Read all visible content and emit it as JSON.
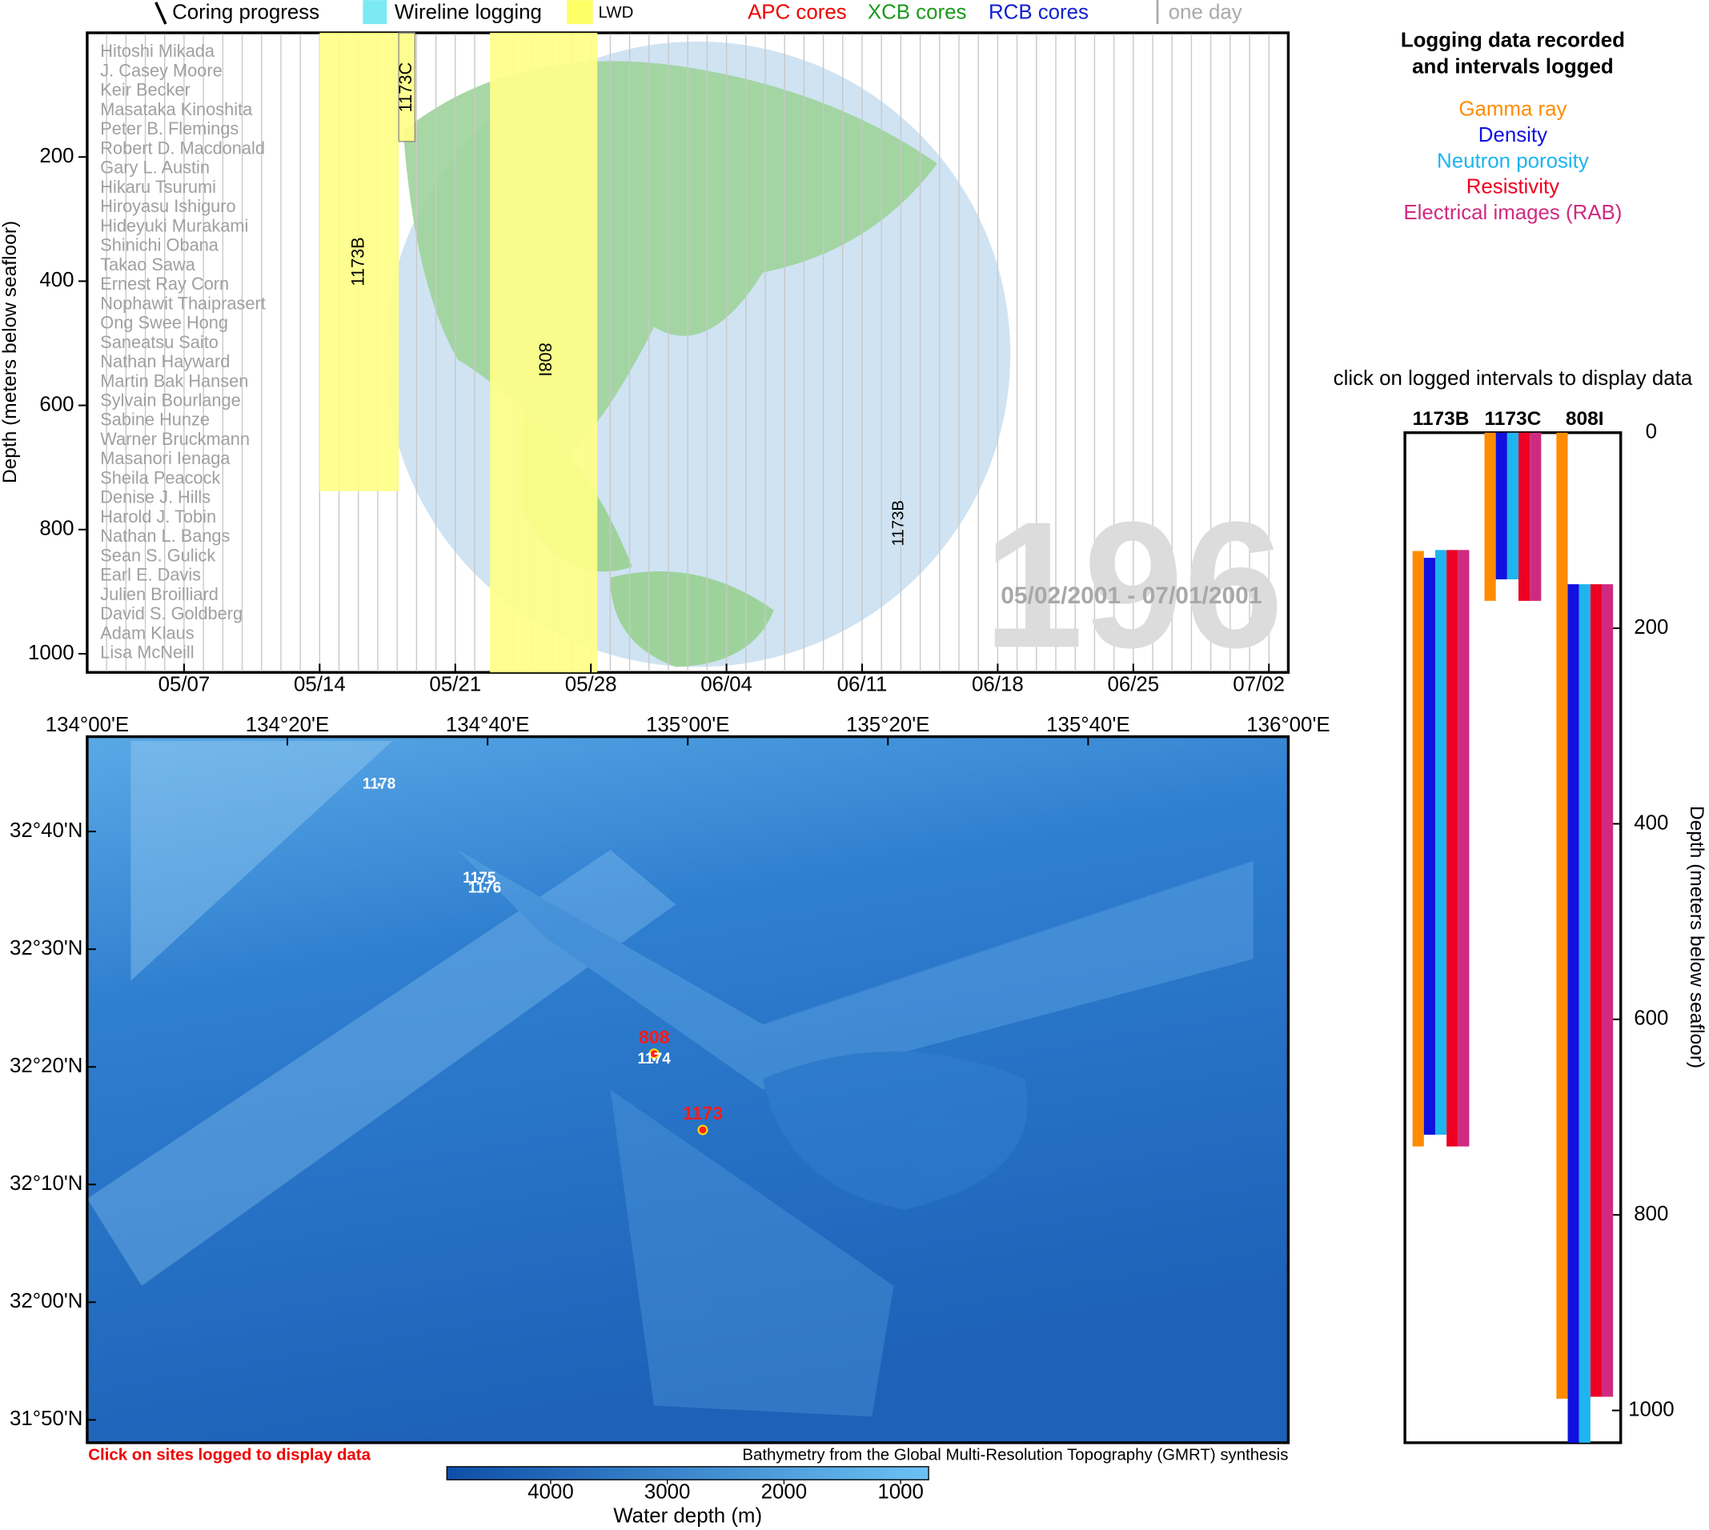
{
  "legend": {
    "coring": "Coring progress",
    "wireline": "Wireline logging",
    "lwd": "LWD",
    "apc": "APC cores",
    "xcb": "XCB cores",
    "rcb": "RCB cores",
    "day": "one day"
  },
  "timeline": {
    "ylabel": "Depth (meters below seafloor)",
    "ylim": [
      0,
      1030
    ],
    "yticks": [
      200,
      400,
      600,
      800,
      1000
    ],
    "xlim": [
      "2001-05-02",
      "2001-07-03"
    ],
    "xticks": [
      {
        "value": "2001-05-07",
        "label": "05/07"
      },
      {
        "value": "2001-05-14",
        "label": "05/14"
      },
      {
        "value": "2001-05-21",
        "label": "05/21"
      },
      {
        "value": "2001-05-28",
        "label": "05/28"
      },
      {
        "value": "2001-06-04",
        "label": "06/04"
      },
      {
        "value": "2001-06-11",
        "label": "06/11"
      },
      {
        "value": "2001-06-18",
        "label": "06/18"
      },
      {
        "value": "2001-06-25",
        "label": "06/25"
      },
      {
        "value": "2001-07-02",
        "label": "07/02"
      }
    ],
    "intervals": [
      {
        "label": "1173B",
        "start": "2001-05-14",
        "end": "2001-05-18T02:00",
        "top": 0,
        "bottom": 738
      },
      {
        "label": "1173C",
        "start": "2001-05-18T02:00",
        "end": "2001-05-18T22:00",
        "top": 0,
        "bottom": 175
      },
      {
        "label": "808I",
        "start": "2001-05-22T19:00",
        "end": "2001-05-28T08:00",
        "top": 0,
        "bottom": 1030
      }
    ],
    "note": "1173B",
    "crew": [
      "Hitoshi Mikada",
      "J. Casey Moore",
      "Keir Becker",
      "Masataka Kinoshita",
      "Peter B. Flemings",
      "Robert D. Macdonald",
      "Gary L. Austin",
      "Hikaru Tsurumi",
      "Hiroyasu Ishiguro",
      "Hideyuki Murakami",
      "Shinichi Obana",
      "Takao Sawa",
      "Ernest Ray Corn",
      "Nophawit Thaiprasert",
      "Ong Swee Hong",
      "Saneatsu Saito",
      "Nathan Hayward",
      "Martin Bak Hansen",
      "Sylvain Bourlange",
      "Sabine Hunze",
      "Warner Bruckmann",
      "Masanori Ienaga",
      "Sheila Peacock",
      "Denise J. Hills",
      "Harold J. Tobin",
      "Nathan L. Bangs",
      "Sean S. Gulick",
      "Earl E. Davis",
      "Julien Broilliard",
      "David S. Goldberg",
      "Adam Klaus",
      "Lisa McNeill"
    ],
    "leg": "196",
    "dates": "05/02/2001 - 07/01/2001"
  },
  "map": {
    "xlim": [
      134,
      136
    ],
    "ylim": [
      31.801,
      32.801
    ],
    "xticks": [
      {
        "value": 134,
        "label": "134°00'E"
      },
      {
        "value": 134.3333,
        "label": "134°20'E"
      },
      {
        "value": 134.6667,
        "label": "134°40'E"
      },
      {
        "value": 135,
        "label": "135°00'E"
      },
      {
        "value": 135.3333,
        "label": "135°20'E"
      },
      {
        "value": 135.6667,
        "label": "135°40'E"
      },
      {
        "value": 136,
        "label": "136°00'E"
      }
    ],
    "yticks": [
      {
        "value": 32.6667,
        "label": "32°40'N"
      },
      {
        "value": 32.5,
        "label": "32°30'N"
      },
      {
        "value": 32.3333,
        "label": "32°20'N"
      },
      {
        "value": 32.1667,
        "label": "32°10'N"
      },
      {
        "value": 32,
        "label": "32°00'N"
      },
      {
        "value": 31.8333,
        "label": "31°50'N"
      }
    ],
    "sites": [
      {
        "label": "808",
        "lon": 134.944,
        "lat": 32.352,
        "logged": true
      },
      {
        "label": "1174",
        "lon": 134.944,
        "lat": 32.344,
        "logged": false
      },
      {
        "label": "1173",
        "lon": 135.025,
        "lat": 32.244,
        "logged": true
      },
      {
        "label": "1175",
        "lon": 134.653,
        "lat": 32.6,
        "logged": false
      },
      {
        "label": "1176",
        "lon": 134.662,
        "lat": 32.586,
        "logged": false
      },
      {
        "label": "1178",
        "lon": 134.486,
        "lat": 32.733,
        "logged": false
      }
    ],
    "note": "Click on sites logged to display data",
    "credit": "Bathymetry from the Global Multi-Resolution Topography (GMRT) synthesis",
    "colorbar": {
      "label": "Water depth (m)",
      "lim": [
        4890,
        760
      ],
      "ticks": [
        4000,
        3000,
        2000,
        1000
      ]
    }
  },
  "logging": {
    "title": [
      "Logging data recorded",
      "and intervals logged"
    ],
    "logs": [
      {
        "name": "Gamma ray",
        "color": "#ff8c00"
      },
      {
        "name": "Density",
        "color": "#1010e0"
      },
      {
        "name": "Neutron porosity",
        "color": "#1eb4f0"
      },
      {
        "name": "Resistivity",
        "color": "#ee0022"
      },
      {
        "name": "Electrical images (RAB)",
        "color": "#d02a80"
      }
    ],
    "prompt": "click on logged intervals to display data",
    "ylabel": "Depth (meters below seafloor)",
    "ylim": [
      0,
      1033
    ],
    "yticks": [
      0,
      200,
      400,
      600,
      800,
      1000
    ],
    "holes": [
      {
        "name": "1173B",
        "intervals": [
          [
            121,
            730
          ],
          [
            128,
            718
          ],
          [
            120,
            718
          ],
          [
            120,
            730
          ],
          [
            120,
            730
          ]
        ]
      },
      {
        "name": "1173C",
        "intervals": [
          [
            0,
            172
          ],
          [
            0,
            150
          ],
          [
            0,
            150
          ],
          [
            0,
            172
          ],
          [
            0,
            172
          ]
        ]
      },
      {
        "name": "808I",
        "intervals": [
          [
            0,
            988
          ],
          [
            155,
            1033
          ],
          [
            155,
            1033
          ],
          [
            155,
            986
          ],
          [
            155,
            986
          ]
        ]
      }
    ]
  }
}
